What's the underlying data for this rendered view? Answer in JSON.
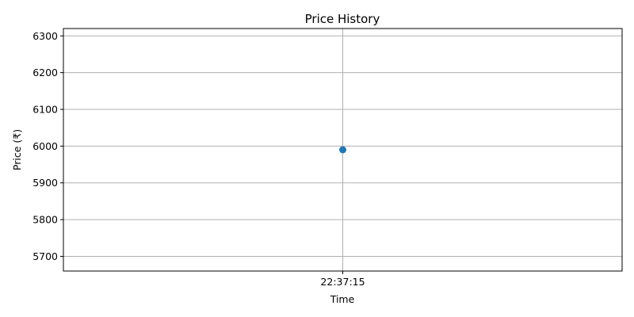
{
  "chart_data": {
    "type": "line",
    "title": "Price History",
    "xlabel": "Time",
    "ylabel": "Price (₹)",
    "categories": [
      "22:37:15"
    ],
    "series": [
      {
        "values": [
          5990
        ],
        "color": "#1f77b4",
        "marker": "circle"
      }
    ],
    "ylim": [
      5660,
      6320
    ],
    "yticks": [
      5700,
      5800,
      5900,
      6000,
      6100,
      6200,
      6300
    ],
    "grid": true
  }
}
